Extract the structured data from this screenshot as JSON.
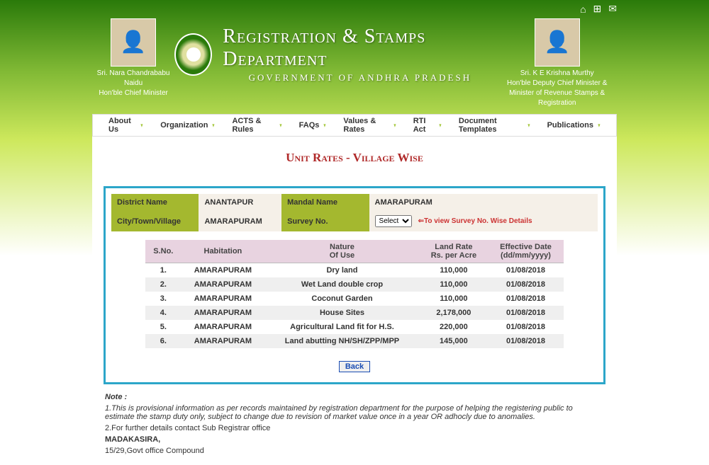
{
  "topbar": {
    "home": "⌂",
    "sitemap": "⊞",
    "mail": "✉"
  },
  "officials": {
    "left": {
      "name": "Sri. Nara Chandrababu Naidu",
      "title": "Hon'ble Chief Minister"
    },
    "right": {
      "name": "Sri. K E Krishna Murthy",
      "title1": "Hon'ble Deputy Chief Minister &",
      "title2": "Minister of Revenue Stamps & Registration"
    }
  },
  "site": {
    "title": "Registration & Stamps Department",
    "subtitle": "GOVERNMENT OF ANDHRA PRADESH"
  },
  "menu": [
    "About Us",
    "Organization",
    "ACTS & Rules",
    "FAQs",
    "Values & Rates",
    "RTI Act",
    "Document Templates",
    "Publications"
  ],
  "page": {
    "title": "Unit Rates - Village Wise"
  },
  "meta": {
    "district_lbl": "District Name",
    "district_val": "ANANTAPUR",
    "mandal_lbl": "Mandal Name",
    "mandal_val": "AMARAPURAM",
    "city_lbl": "City/Town/Village",
    "city_val": "AMARAPURAM",
    "survey_lbl": "Survey No.",
    "survey_select": "Select",
    "survey_hint": "⇐To view Survey No. Wise Details"
  },
  "table": {
    "headers": {
      "sno": "S.No.",
      "hab": "Habitation",
      "nature1": "Nature",
      "nature2": "Of Use",
      "rate1": "Land Rate",
      "rate2": "Rs. per Acre",
      "eff1": "Effective Date",
      "eff2": "(dd/mm/yyyy)"
    },
    "rows": [
      {
        "sno": "1.",
        "hab": "AMARAPURAM",
        "nature": "Dry land",
        "rate": "110,000",
        "eff": "01/08/2018"
      },
      {
        "sno": "2.",
        "hab": "AMARAPURAM",
        "nature": "Wet Land double crop",
        "rate": "110,000",
        "eff": "01/08/2018"
      },
      {
        "sno": "3.",
        "hab": "AMARAPURAM",
        "nature": "Coconut Garden",
        "rate": "110,000",
        "eff": "01/08/2018"
      },
      {
        "sno": "4.",
        "hab": "AMARAPURAM",
        "nature": "House Sites",
        "rate": "2,178,000",
        "eff": "01/08/2018"
      },
      {
        "sno": "5.",
        "hab": "AMARAPURAM",
        "nature": "Agricultural Land fit for H.S.",
        "rate": "220,000",
        "eff": "01/08/2018"
      },
      {
        "sno": "6.",
        "hab": "AMARAPURAM",
        "nature": "Land abutting NH/SH/ZPP/MPP",
        "rate": "145,000",
        "eff": "01/08/2018"
      }
    ]
  },
  "back": "Back",
  "notes": {
    "heading": "Note :",
    "l1": "1.This is provisional information as per records maintained by registration department for the purpose of helping the registering public to estimate the stamp duty only, subject to change due to revision of market value once in a year OR adhocly due to anomalies.",
    "l2": "2.For further details contact Sub Registrar office",
    "l3": "MADAKASIRA,",
    "l4": "15/29,Govt office Compound"
  }
}
